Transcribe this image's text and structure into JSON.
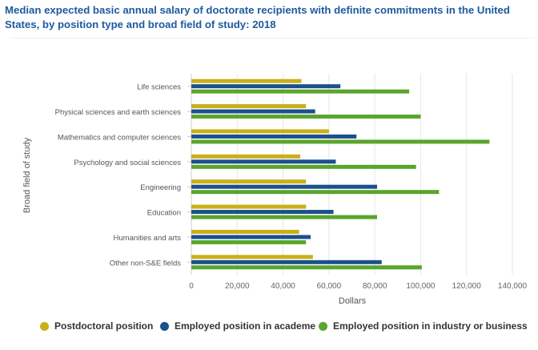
{
  "chart_data": {
    "type": "bar",
    "orientation": "horizontal",
    "title": "Median expected basic annual salary of doctorate recipients with definite commitments in the United States, by position type and broad field of study: 2018",
    "xlabel": "Dollars",
    "ylabel": "Broad field of study",
    "xlim": [
      0,
      140000
    ],
    "xticks": [
      0,
      20000,
      40000,
      60000,
      80000,
      100000,
      120000,
      140000
    ],
    "xtick_labels": [
      "0",
      "20,000",
      "40,000",
      "60,000",
      "80,000",
      "100,000",
      "120,000",
      "140,000"
    ],
    "grid": true,
    "legend_position": "bottom",
    "categories": [
      "Life sciences",
      "Physical sciences and earth sciences",
      "Mathematics and computer sciences",
      "Psychology and social sciences",
      "Engineering",
      "Education",
      "Humanities and arts",
      "Other non-S&E fields"
    ],
    "series": [
      {
        "name": "Postdoctoral position",
        "color": "#c9b017",
        "values": [
          48000,
          50000,
          60000,
          47500,
          50000,
          50000,
          47000,
          53000
        ]
      },
      {
        "name": "Employed position in academe",
        "color": "#1c4f8c",
        "values": [
          65000,
          54000,
          72000,
          63000,
          81000,
          62000,
          52000,
          83000
        ]
      },
      {
        "name": "Employed position in industry or business",
        "color": "#5aa52d",
        "values": [
          95000,
          100000,
          130000,
          98000,
          108000,
          81000,
          50000,
          100500
        ]
      }
    ]
  }
}
